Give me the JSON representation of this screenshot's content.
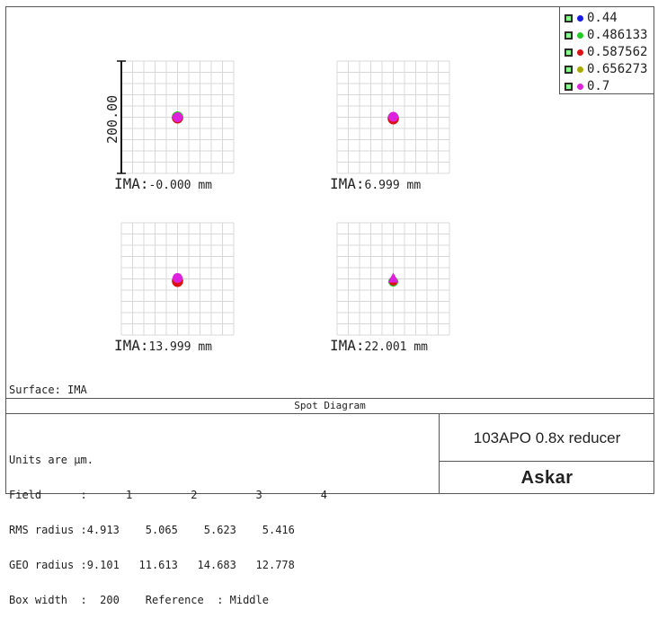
{
  "chart_data": {
    "type": "scatter",
    "title": "Spot Diagram",
    "box_width": 200,
    "scale_label": "200.00",
    "wavelengths": [
      {
        "label": "0.44",
        "color": "#1a1ae6"
      },
      {
        "label": "0.486133",
        "color": "#22cc22"
      },
      {
        "label": "0.587562",
        "color": "#dd1111"
      },
      {
        "label": "0.656273",
        "color": "#aaaa00"
      },
      {
        "label": "0.7",
        "color": "#dd22dd"
      }
    ],
    "fields": [
      {
        "label": "IMA:",
        "value": "-0.000 mm",
        "spot": "circle"
      },
      {
        "label": "IMA:",
        "value": "6.999 mm",
        "spot": "circle"
      },
      {
        "label": "IMA:",
        "value": "13.999 mm",
        "spot": "circle"
      },
      {
        "label": "IMA:",
        "value": "22.001 mm",
        "spot": "triangle"
      }
    ]
  },
  "surface": "Surface: IMA",
  "stats": {
    "units": "Units are µm.",
    "field_line": "Field      :      1         2         3         4",
    "rms_line": "RMS radius :4.913    5.065    5.623    5.416",
    "geo_line": "GEO radius :9.101   11.613   14.683   12.778",
    "box_line": "Box width  :  200    Reference  : Middle"
  },
  "model": "103APO 0.8x reducer",
  "brand": "Askar"
}
